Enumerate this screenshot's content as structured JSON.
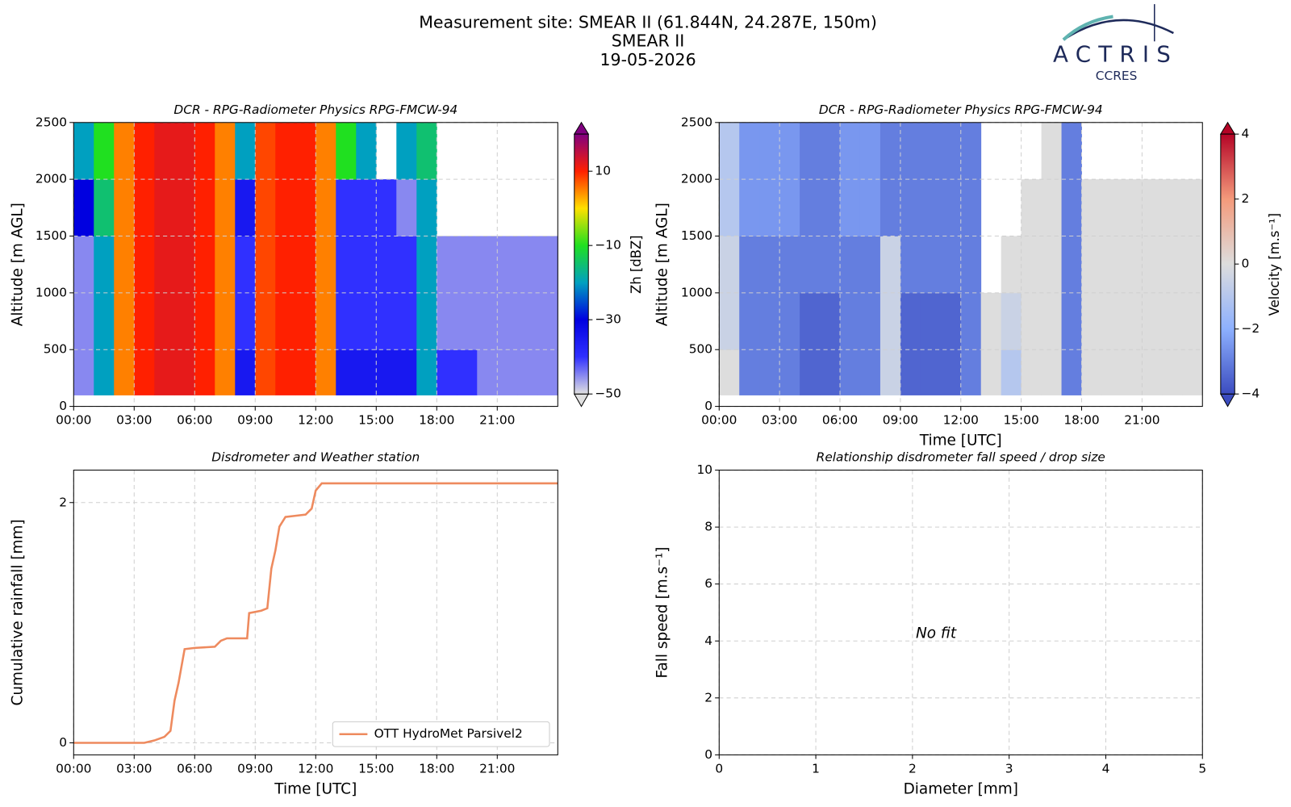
{
  "header": {
    "lines": [
      "Measurement site: SMEAR II (61.844N, 24.287E, 150m)",
      "SMEAR II",
      "19-05-2026"
    ],
    "logo": {
      "name": "ACTRIS",
      "sub": "CCRES"
    }
  },
  "chart_data": [
    {
      "type": "heatmap",
      "title": "DCR - RPG-Radiometer Physics RPG-FMCW-94",
      "ylabel": "Altitude [m AGL]",
      "colorbar_label": "Zh [dBZ]",
      "xlim": [
        0,
        24
      ],
      "xticks": [
        {
          "value": 0,
          "label": "00:00"
        },
        {
          "value": 3,
          "label": "03:00"
        },
        {
          "value": 6,
          "label": "06:00"
        },
        {
          "value": 9,
          "label": "09:00"
        },
        {
          "value": 12,
          "label": "12:00"
        },
        {
          "value": 15,
          "label": "15:00"
        },
        {
          "value": 18,
          "label": "18:00"
        },
        {
          "value": 21,
          "label": "21:00"
        }
      ],
      "ylim": [
        0,
        2500
      ],
      "yticks": [
        0,
        500,
        1000,
        1500,
        2000,
        2500
      ],
      "grid": true,
      "xbins": [
        0,
        1,
        2,
        3,
        4,
        5,
        6,
        7,
        8,
        9,
        10,
        11,
        12,
        13,
        14,
        15,
        16,
        17,
        18,
        19,
        20,
        21,
        22,
        23,
        24
      ],
      "ybins": [
        100,
        500,
        1000,
        1500,
        2000,
        2500
      ],
      "clim": [
        -50,
        20
      ],
      "cticks": [
        {
          "value": -50,
          "label": "−50"
        },
        {
          "value": -30,
          "label": "−30"
        },
        {
          "value": -10,
          "label": "−10"
        },
        10
      ],
      "colormap": [
        "#e0e0e0",
        "#3030ff",
        "#0000e0",
        "#00a0c0",
        "#20e020",
        "#ffe000",
        "#ff2000",
        "#800080"
      ],
      "z": [
        [
          -45,
          -20,
          5,
          10,
          12,
          12,
          10,
          5,
          -35,
          8,
          10,
          10,
          5,
          -35,
          -35,
          -35,
          -35,
          -20,
          -40,
          -40,
          -45,
          -45,
          -45,
          -45
        ],
        [
          -45,
          -20,
          5,
          10,
          12,
          12,
          10,
          5,
          -40,
          8,
          10,
          10,
          5,
          -40,
          -40,
          -40,
          -40,
          -20,
          -45,
          -45,
          -45,
          -45,
          -45,
          -45
        ],
        [
          -45,
          -20,
          5,
          10,
          12,
          12,
          10,
          5,
          -40,
          8,
          10,
          10,
          5,
          -40,
          -40,
          -40,
          -40,
          -20,
          -45,
          -45,
          -45,
          -45,
          -45,
          -45
        ],
        [
          -30,
          -15,
          5,
          10,
          12,
          12,
          10,
          5,
          -35,
          8,
          10,
          10,
          5,
          -40,
          -40,
          -40,
          -45,
          -20,
          null,
          null,
          null,
          null,
          null,
          null
        ],
        [
          -20,
          -10,
          5,
          10,
          12,
          12,
          10,
          5,
          -20,
          8,
          10,
          10,
          5,
          -10,
          -20,
          null,
          -20,
          -15,
          null,
          null,
          null,
          null,
          null,
          null
        ]
      ]
    },
    {
      "type": "heatmap",
      "title": "DCR - RPG-Radiometer Physics RPG-FMCW-94",
      "xlabel": "Time [UTC]",
      "ylabel": "Altitude [m AGL]",
      "colorbar_label": "Velocity [m.s⁻¹]",
      "xlim": [
        0,
        24
      ],
      "xticks": [
        {
          "value": 0,
          "label": "00:00"
        },
        {
          "value": 3,
          "label": "03:00"
        },
        {
          "value": 6,
          "label": "06:00"
        },
        {
          "value": 9,
          "label": "09:00"
        },
        {
          "value": 12,
          "label": "12:00"
        },
        {
          "value": 15,
          "label": "15:00"
        },
        {
          "value": 18,
          "label": "18:00"
        },
        {
          "value": 21,
          "label": "21:00"
        }
      ],
      "ylim": [
        0,
        2500
      ],
      "yticks": [
        0,
        500,
        1000,
        1500,
        2000,
        2500
      ],
      "grid": true,
      "xbins": [
        0,
        1,
        2,
        3,
        4,
        5,
        6,
        7,
        8,
        9,
        10,
        11,
        12,
        13,
        14,
        15,
        16,
        17,
        18,
        19,
        20,
        21,
        22,
        23,
        24
      ],
      "ybins": [
        100,
        500,
        1000,
        1500,
        2000,
        2500
      ],
      "clim": [
        -4,
        4
      ],
      "cticks": [
        {
          "value": -4,
          "label": "−4"
        },
        {
          "value": -2,
          "label": "−2"
        },
        0,
        2,
        4
      ],
      "colormap": [
        "#3b4cc0",
        "#8db0fe",
        "#dddddd",
        "#f49a7b",
        "#b40426"
      ],
      "z": [
        [
          0,
          -3,
          -3,
          -3,
          -3.5,
          -3.5,
          -3,
          -3,
          -0.5,
          -3.5,
          -3.5,
          -3.5,
          -3,
          0,
          -1,
          0,
          0,
          -3,
          0,
          0,
          0,
          0,
          0,
          0
        ],
        [
          -0.5,
          -3,
          -3,
          -3,
          -3.5,
          -3.5,
          -3,
          -3,
          -0.5,
          -3.5,
          -3.5,
          -3.5,
          -3,
          0,
          -0.5,
          0,
          0,
          -3,
          0,
          0,
          0,
          0,
          0,
          0
        ],
        [
          -0.5,
          -3,
          -3,
          -3,
          -3,
          -3,
          -3,
          -3,
          -0.5,
          -3,
          -3,
          -3,
          -3,
          null,
          0,
          0,
          0,
          -3,
          0,
          0,
          0,
          0,
          0,
          0
        ],
        [
          -1,
          -2.5,
          -2.5,
          -2.5,
          -3,
          -3,
          -2.5,
          -2.5,
          -3,
          -3,
          -3,
          -3,
          -3,
          null,
          null,
          0,
          0,
          -3,
          0,
          0,
          0,
          0,
          0,
          0
        ],
        [
          -1,
          -2.5,
          -2.5,
          -2.5,
          -3,
          -3,
          -2.5,
          -2.5,
          -3,
          -3,
          -3,
          -3,
          -3,
          null,
          null,
          null,
          0,
          -3,
          null,
          null,
          null,
          null,
          null,
          null
        ]
      ]
    },
    {
      "type": "line",
      "title": "Disdrometer and Weather station",
      "xlabel": "Time [UTC]",
      "ylabel": "Cumulative rainfall [mm]",
      "xlim": [
        0,
        24
      ],
      "xticks": [
        {
          "value": 0,
          "label": "00:00"
        },
        {
          "value": 3,
          "label": "03:00"
        },
        {
          "value": 6,
          "label": "06:00"
        },
        {
          "value": 9,
          "label": "09:00"
        },
        {
          "value": 12,
          "label": "12:00"
        },
        {
          "value": 15,
          "label": "15:00"
        },
        {
          "value": 18,
          "label": "18:00"
        },
        {
          "value": 21,
          "label": "21:00"
        }
      ],
      "ylim": [
        -0.1,
        2.27
      ],
      "yticks": [
        0,
        2
      ],
      "grid": true,
      "legend": "lower right",
      "x": [
        0,
        3.5,
        4,
        4.5,
        4.8,
        5,
        5.2,
        5.5,
        6,
        7,
        7.3,
        7.6,
        8.6,
        8.7,
        9.3,
        9.6,
        9.8,
        10,
        10.2,
        10.5,
        11,
        11.5,
        11.8,
        12,
        12.3,
        24
      ],
      "series": [
        {
          "name": "OTT HydroMet Parsivel2",
          "color": "#ee8a5e",
          "values": [
            0,
            0,
            0.02,
            0.05,
            0.1,
            0.35,
            0.5,
            0.78,
            0.79,
            0.8,
            0.85,
            0.87,
            0.87,
            1.08,
            1.1,
            1.12,
            1.45,
            1.6,
            1.8,
            1.88,
            1.89,
            1.9,
            1.95,
            2.1,
            2.16,
            2.16
          ]
        }
      ]
    },
    {
      "type": "scatter",
      "title": "Relationship disdrometer fall speed / drop size",
      "xlabel": "Diameter [mm]",
      "ylabel": "Fall speed [m.s⁻¹]",
      "xlim": [
        0,
        5
      ],
      "xticks": [
        0,
        1,
        2,
        3,
        4,
        5
      ],
      "ylim": [
        0,
        10
      ],
      "yticks": [
        0,
        2,
        4,
        6,
        8,
        10
      ],
      "grid": true,
      "annotation": "No fit"
    }
  ]
}
